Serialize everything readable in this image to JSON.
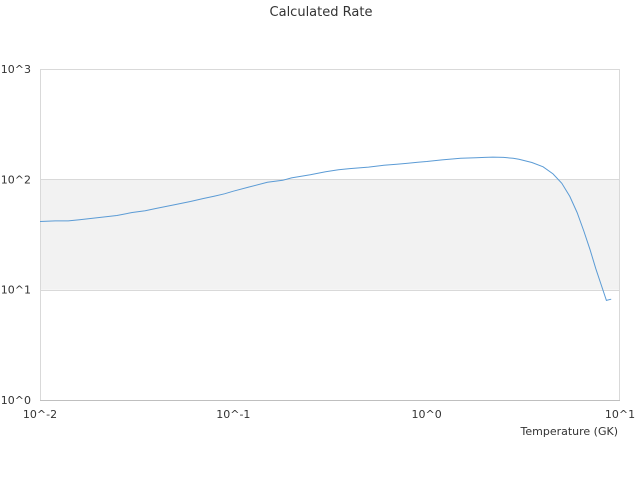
{
  "chart_data": {
    "type": "line",
    "title": "Calculated Rate",
    "xlabel": "Temperature (GK)",
    "ylabel": "",
    "x_scale": "log",
    "y_scale": "log",
    "xlim": [
      0.01,
      10
    ],
    "ylim": [
      1,
      1000
    ],
    "x_ticks": [
      {
        "value": 0.01,
        "label": "10^-2"
      },
      {
        "value": 0.1,
        "label": "10^-1"
      },
      {
        "value": 1,
        "label": "10^0"
      },
      {
        "value": 10,
        "label": "10^1"
      }
    ],
    "y_ticks": [
      {
        "value": 1,
        "label": "10^0"
      },
      {
        "value": 10,
        "label": "10^1"
      },
      {
        "value": 100,
        "label": "10^2"
      },
      {
        "value": 1000,
        "label": "10^3"
      }
    ],
    "grid": true,
    "legend": "none",
    "colors": {
      "line": "#5b9bd5",
      "band": "#f2f2f2",
      "grid": "#d9d9d9"
    },
    "series": [
      {
        "x": [
          0.01,
          0.012,
          0.014,
          0.016,
          0.02,
          0.025,
          0.03,
          0.035,
          0.04,
          0.05,
          0.06,
          0.07,
          0.08,
          0.09,
          0.1,
          0.12,
          0.15,
          0.18,
          0.2,
          0.25,
          0.3,
          0.35,
          0.4,
          0.5,
          0.6,
          0.7,
          0.8,
          0.9,
          1.0,
          1.2,
          1.5,
          1.8,
          2.0,
          2.2,
          2.5,
          2.8,
          3.0,
          3.5,
          4.0,
          4.5,
          5.0,
          5.5,
          6.0,
          6.5,
          7.0,
          7.5,
          8.0,
          8.5,
          9.0
        ],
        "y": [
          41.5,
          42,
          42,
          43,
          45,
          47,
          50,
          52,
          54.5,
          59,
          63,
          67,
          70.5,
          74,
          78,
          85,
          94,
          98,
          103,
          110,
          117,
          122,
          125,
          129,
          134,
          137,
          140,
          143,
          145,
          150,
          155,
          157,
          158,
          159,
          158,
          155,
          152,
          142,
          130,
          112,
          92,
          70,
          50,
          34,
          23,
          15.5,
          11,
          8,
          8.2
        ]
      }
    ]
  }
}
